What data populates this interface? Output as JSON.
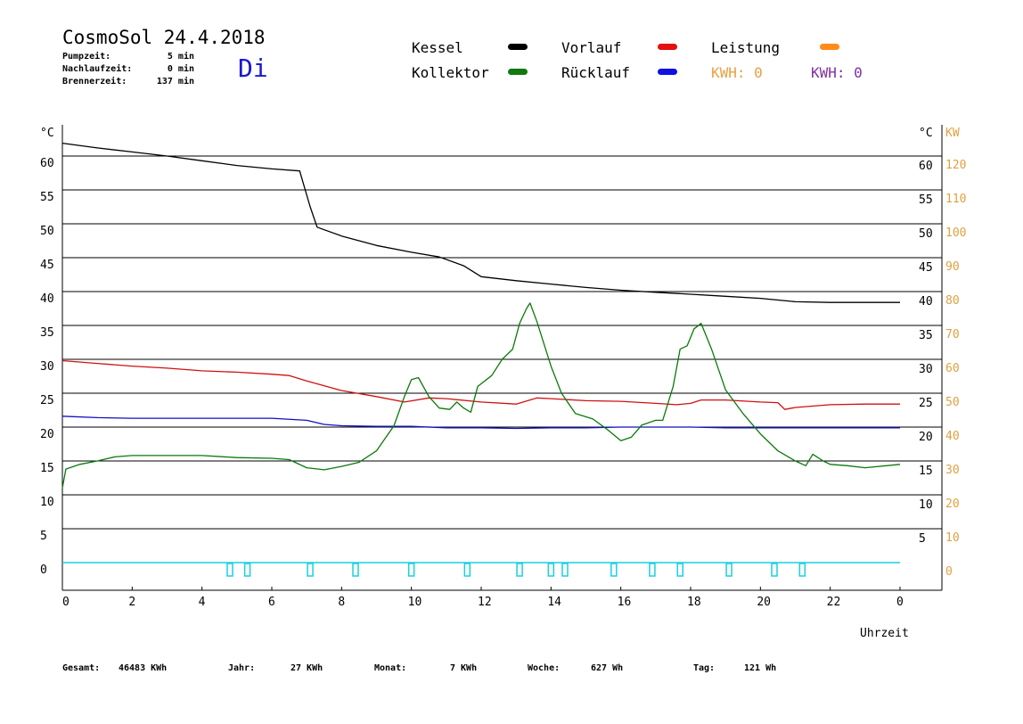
{
  "header": {
    "title": "CosmoSol 24.4.2018",
    "weekday": "Di",
    "info": [
      {
        "label": "Pumpzeit:",
        "value": "5 min"
      },
      {
        "label": "Nachlaufzeit:",
        "value": "0 min"
      },
      {
        "label": "Brennerzeit:",
        "value": "137 min"
      }
    ]
  },
  "legend": {
    "items": [
      {
        "label": "Kessel",
        "color": "#000000"
      },
      {
        "label": "Kollektor",
        "color": "#107a10"
      },
      {
        "label": "Vorlauf",
        "color": "#e31010"
      },
      {
        "label": "Rücklauf",
        "color": "#1010e3"
      },
      {
        "label": "Leistung",
        "color": "#ff8c1a"
      }
    ],
    "kwh_orange": "KWH: 0",
    "kwh_purple": "KWH: 0",
    "kwh_orange_color": "#e8a040",
    "kwh_purple_color": "#8030a0"
  },
  "footer": {
    "gesamt_label": "Gesamt:",
    "gesamt_value": "46483 KWh",
    "jahr_label": "Jahr:",
    "jahr_value": "27 KWh",
    "monat_label": "Monat:",
    "monat_value": "7 KWh",
    "woche_label": "Woche:",
    "woche_value": "627 Wh",
    "tag_label": "Tag:",
    "tag_value": "121 Wh"
  },
  "chart_data": {
    "type": "line",
    "xlabel": "Uhrzeit",
    "x_ticks": [
      "0",
      "2",
      "4",
      "6",
      "8",
      "10",
      "12",
      "14",
      "16",
      "18",
      "20",
      "22",
      "0"
    ],
    "xlim": [
      0,
      24
    ],
    "ylabel_left": "°C",
    "ylabel_right": "°C",
    "ylabel_right2": "KW",
    "ylim": [
      -2,
      66
    ],
    "y_ticks_left": [
      "0",
      "5",
      "10",
      "15",
      "20",
      "25",
      "30",
      "35",
      "40",
      "45",
      "50",
      "55",
      "60"
    ],
    "y_ticks_right": [
      "",
      "5",
      "10",
      "15",
      "20",
      "25",
      "30",
      "35",
      "40",
      "45",
      "50",
      "55",
      "60"
    ],
    "y_ticks_kw": [
      "0",
      "10",
      "20",
      "30",
      "40",
      "50",
      "60",
      "70",
      "80",
      "90",
      "100",
      "110",
      "120"
    ],
    "grid": true,
    "series": [
      {
        "name": "Kessel",
        "color": "#000000",
        "points": [
          [
            0,
            61.9
          ],
          [
            1,
            61.2
          ],
          [
            2,
            60.6
          ],
          [
            3,
            60.0
          ],
          [
            4,
            59.3
          ],
          [
            5,
            58.6
          ],
          [
            6,
            58.1
          ],
          [
            6.8,
            57.8
          ],
          [
            6.9,
            56
          ],
          [
            7.1,
            52.5
          ],
          [
            7.3,
            49.5
          ],
          [
            8,
            48.2
          ],
          [
            9,
            46.8
          ],
          [
            10,
            45.8
          ],
          [
            10.8,
            45.1
          ],
          [
            11.5,
            43.8
          ],
          [
            12,
            42.2
          ],
          [
            13,
            41.6
          ],
          [
            14,
            41.1
          ],
          [
            15,
            40.6
          ],
          [
            16,
            40.2
          ],
          [
            17,
            39.9
          ],
          [
            18,
            39.6
          ],
          [
            19,
            39.3
          ],
          [
            20,
            39.0
          ],
          [
            21,
            38.5
          ],
          [
            22,
            38.4
          ],
          [
            24,
            38.4
          ]
        ]
      },
      {
        "name": "Vorlauf",
        "color": "#d01010",
        "points": [
          [
            0,
            29.8
          ],
          [
            1,
            29.4
          ],
          [
            2,
            29.0
          ],
          [
            3,
            28.7
          ],
          [
            4,
            28.3
          ],
          [
            5,
            28.1
          ],
          [
            6,
            27.8
          ],
          [
            6.5,
            27.6
          ],
          [
            7,
            26.8
          ],
          [
            8,
            25.4
          ],
          [
            9,
            24.5
          ],
          [
            9.8,
            23.7
          ],
          [
            10.5,
            24.3
          ],
          [
            11,
            24.2
          ],
          [
            12,
            23.7
          ],
          [
            13,
            23.4
          ],
          [
            13.6,
            24.3
          ],
          [
            14,
            24.2
          ],
          [
            15,
            23.9
          ],
          [
            16,
            23.8
          ],
          [
            17,
            23.5
          ],
          [
            17.6,
            23.3
          ],
          [
            18,
            23.5
          ],
          [
            18.3,
            24.0
          ],
          [
            19,
            24.0
          ],
          [
            20,
            23.7
          ],
          [
            20.5,
            23.6
          ],
          [
            20.7,
            22.6
          ],
          [
            21,
            22.9
          ],
          [
            22,
            23.3
          ],
          [
            23,
            23.4
          ],
          [
            24,
            23.4
          ]
        ]
      },
      {
        "name": "Rücklauf",
        "color": "#1010c0",
        "points": [
          [
            0,
            21.6
          ],
          [
            1,
            21.4
          ],
          [
            2,
            21.3
          ],
          [
            3,
            21.3
          ],
          [
            4,
            21.3
          ],
          [
            5,
            21.3
          ],
          [
            6,
            21.3
          ],
          [
            7,
            21.0
          ],
          [
            7.5,
            20.4
          ],
          [
            8,
            20.2
          ],
          [
            9,
            20.1
          ],
          [
            10,
            20.1
          ],
          [
            11,
            19.9
          ],
          [
            12,
            19.9
          ],
          [
            13,
            19.8
          ],
          [
            14,
            19.9
          ],
          [
            15,
            19.9
          ],
          [
            16,
            20.0
          ],
          [
            17,
            20.0
          ],
          [
            18,
            20.0
          ],
          [
            19,
            19.9
          ],
          [
            20,
            19.9
          ],
          [
            21,
            19.9
          ],
          [
            22,
            19.9
          ],
          [
            24,
            19.9
          ]
        ]
      },
      {
        "name": "Kollektor",
        "color": "#0a7a0a",
        "points": [
          [
            0,
            11.0
          ],
          [
            0.1,
            13.8
          ],
          [
            0.5,
            14.5
          ],
          [
            1,
            15.0
          ],
          [
            1.5,
            15.6
          ],
          [
            2,
            15.8
          ],
          [
            3,
            15.8
          ],
          [
            4,
            15.8
          ],
          [
            5,
            15.5
          ],
          [
            6,
            15.4
          ],
          [
            6.5,
            15.2
          ],
          [
            7,
            14.0
          ],
          [
            7.5,
            13.7
          ],
          [
            8,
            14.2
          ],
          [
            8.5,
            14.8
          ],
          [
            9,
            16.5
          ],
          [
            9.5,
            20.2
          ],
          [
            9.8,
            24.5
          ],
          [
            10,
            27.0
          ],
          [
            10.2,
            27.3
          ],
          [
            10.5,
            24.5
          ],
          [
            10.8,
            22.8
          ],
          [
            11.1,
            22.6
          ],
          [
            11.3,
            23.7
          ],
          [
            11.5,
            22.8
          ],
          [
            11.7,
            22.2
          ],
          [
            11.9,
            26.0
          ],
          [
            12.3,
            27.6
          ],
          [
            12.6,
            30.0
          ],
          [
            12.9,
            31.5
          ],
          [
            13.1,
            35.3
          ],
          [
            13.3,
            37.5
          ],
          [
            13.4,
            38.3
          ],
          [
            13.6,
            35.5
          ],
          [
            14,
            29.0
          ],
          [
            14.3,
            25.0
          ],
          [
            14.7,
            22.0
          ],
          [
            15.2,
            21.2
          ],
          [
            15.6,
            19.7
          ],
          [
            16,
            18.0
          ],
          [
            16.3,
            18.5
          ],
          [
            16.6,
            20.3
          ],
          [
            17,
            21.0
          ],
          [
            17.2,
            21.0
          ],
          [
            17.5,
            26.0
          ],
          [
            17.7,
            31.5
          ],
          [
            17.9,
            32.0
          ],
          [
            18.1,
            34.5
          ],
          [
            18.3,
            35.3
          ],
          [
            18.6,
            31.5
          ],
          [
            19,
            25.5
          ],
          [
            19.5,
            22.0
          ],
          [
            20,
            19.0
          ],
          [
            20.5,
            16.5
          ],
          [
            21,
            15.0
          ],
          [
            21.3,
            14.3
          ],
          [
            21.5,
            16.0
          ],
          [
            21.8,
            15.0
          ],
          [
            22,
            14.5
          ],
          [
            22.5,
            14.3
          ],
          [
            23,
            14.0
          ],
          [
            24,
            14.5
          ]
        ]
      }
    ],
    "pump_band_color": "#18d0e0",
    "pump_events": [
      4.8,
      5.3,
      7.1,
      8.4,
      10.0,
      11.6,
      13.1,
      14.0,
      14.4,
      15.8,
      16.9,
      17.7,
      19.1,
      20.4,
      21.2
    ]
  }
}
